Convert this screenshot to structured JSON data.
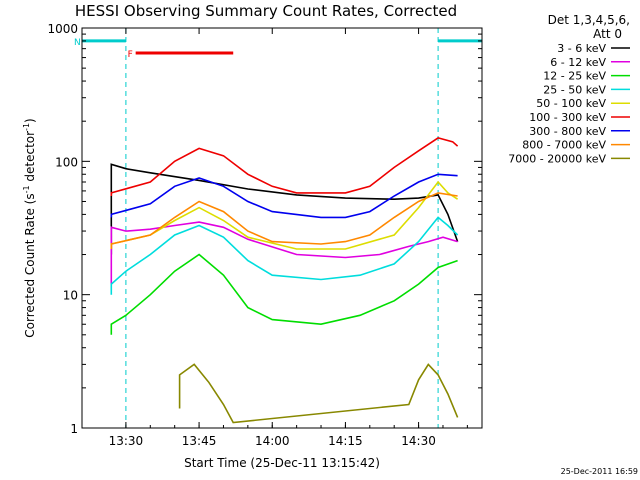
{
  "chart_data": {
    "type": "line",
    "title": "HESSI Observing Summary Count Rates, Corrected",
    "xlabel": "Start Time (25-Dec-11 13:15:42)",
    "ylabel_main": "Corrected Count Rate (s",
    "ylabel_sup1": "-1",
    "ylabel_mid": " detector",
    "ylabel_sup2": "-1",
    "ylabel_end": ")",
    "yscale": "log",
    "ylim": [
      1,
      1000
    ],
    "xlim_minutes": [
      -9,
      73
    ],
    "x_ticks": [
      {
        "t": 0,
        "label": "13:30"
      },
      {
        "t": 15,
        "label": "13:45"
      },
      {
        "t": 30,
        "label": "14:00"
      },
      {
        "t": 45,
        "label": "14:15"
      },
      {
        "t": 60,
        "label": "14:30"
      },
      {
        "t": 75,
        "label": "14:45"
      }
    ],
    "y_ticks": [
      {
        "v": 1,
        "label": "1"
      },
      {
        "v": 10,
        "label": "10"
      },
      {
        "v": 100,
        "label": "100"
      },
      {
        "v": 1000,
        "label": "1000"
      }
    ],
    "legend_header": [
      "Det 1,3,4,5,6,",
      "Att 0"
    ],
    "legend_position": "right",
    "timestamp": "25-Dec-2011 16:59",
    "flags": [
      {
        "label": "F",
        "color": "#ee0000",
        "start": 2,
        "end": 22,
        "value": 650
      },
      {
        "label": "N",
        "color": "#00cccc",
        "start": -16,
        "end": 0,
        "value": 800
      },
      {
        "label": "",
        "color": "#00cccc",
        "start": 64,
        "end": 80,
        "value": 800
      }
    ],
    "night_intervals": [
      {
        "start": -9,
        "end": 0
      },
      {
        "start": 64,
        "end": 80
      }
    ],
    "series": [
      {
        "name": "3 - 6 keV",
        "color": "#000000",
        "points": [
          [
            -3,
            20
          ],
          [
            -3,
            95
          ],
          [
            0,
            88
          ],
          [
            5,
            82
          ],
          [
            15,
            72
          ],
          [
            25,
            62
          ],
          [
            35,
            56
          ],
          [
            45,
            53
          ],
          [
            55,
            52
          ],
          [
            60,
            53
          ],
          [
            64,
            56
          ],
          [
            66,
            40
          ],
          [
            68,
            25
          ]
        ]
      },
      {
        "name": "6 - 12 keV",
        "color": "#e000e0",
        "points": [
          [
            -3,
            12
          ],
          [
            -3,
            32
          ],
          [
            0,
            30
          ],
          [
            5,
            31
          ],
          [
            10,
            33
          ],
          [
            15,
            35
          ],
          [
            20,
            32
          ],
          [
            25,
            26
          ],
          [
            35,
            20
          ],
          [
            45,
            19
          ],
          [
            52,
            20
          ],
          [
            58,
            23
          ],
          [
            62,
            25
          ],
          [
            65,
            27
          ],
          [
            68,
            25
          ]
        ]
      },
      {
        "name": "12 - 25 keV",
        "color": "#00dd00",
        "points": [
          [
            -3,
            5
          ],
          [
            -3,
            6
          ],
          [
            0,
            7
          ],
          [
            5,
            10
          ],
          [
            10,
            15
          ],
          [
            15,
            20
          ],
          [
            20,
            14
          ],
          [
            25,
            8
          ],
          [
            30,
            6.5
          ],
          [
            40,
            6
          ],
          [
            48,
            7
          ],
          [
            55,
            9
          ],
          [
            60,
            12
          ],
          [
            64,
            16
          ],
          [
            68,
            18
          ]
        ]
      },
      {
        "name": "25 - 50 keV",
        "color": "#00dddd",
        "points": [
          [
            -3,
            10
          ],
          [
            -3,
            12
          ],
          [
            0,
            15
          ],
          [
            5,
            20
          ],
          [
            10,
            28
          ],
          [
            15,
            33
          ],
          [
            20,
            27
          ],
          [
            25,
            18
          ],
          [
            30,
            14
          ],
          [
            40,
            13
          ],
          [
            48,
            14
          ],
          [
            55,
            17
          ],
          [
            60,
            25
          ],
          [
            64,
            38
          ],
          [
            66,
            33
          ],
          [
            68,
            28
          ]
        ]
      },
      {
        "name": "50 - 100 keV",
        "color": "#dddd00",
        "points": [
          [
            -3,
            22
          ],
          [
            -3,
            24
          ],
          [
            5,
            28
          ],
          [
            10,
            36
          ],
          [
            15,
            45
          ],
          [
            20,
            36
          ],
          [
            25,
            27
          ],
          [
            35,
            22
          ],
          [
            45,
            22
          ],
          [
            55,
            28
          ],
          [
            60,
            45
          ],
          [
            64,
            70
          ],
          [
            66,
            58
          ],
          [
            68,
            52
          ]
        ]
      },
      {
        "name": "100 - 300 keV",
        "color": "#ee0000",
        "points": [
          [
            -3,
            55
          ],
          [
            -3,
            58
          ],
          [
            5,
            70
          ],
          [
            10,
            100
          ],
          [
            15,
            125
          ],
          [
            20,
            110
          ],
          [
            25,
            80
          ],
          [
            30,
            65
          ],
          [
            35,
            58
          ],
          [
            45,
            58
          ],
          [
            50,
            65
          ],
          [
            55,
            90
          ],
          [
            60,
            120
          ],
          [
            64,
            150
          ],
          [
            67,
            140
          ],
          [
            68,
            130
          ]
        ]
      },
      {
        "name": "300 - 800 keV",
        "color": "#0000ee",
        "points": [
          [
            -3,
            38
          ],
          [
            -3,
            40
          ],
          [
            5,
            48
          ],
          [
            10,
            65
          ],
          [
            15,
            75
          ],
          [
            20,
            65
          ],
          [
            25,
            50
          ],
          [
            30,
            42
          ],
          [
            40,
            38
          ],
          [
            45,
            38
          ],
          [
            50,
            42
          ],
          [
            55,
            55
          ],
          [
            60,
            70
          ],
          [
            64,
            80
          ],
          [
            68,
            78
          ]
        ]
      },
      {
        "name": "800 - 7000 keV",
        "color": "#ff8800",
        "points": [
          [
            -3,
            22
          ],
          [
            -3,
            24
          ],
          [
            5,
            28
          ],
          [
            10,
            38
          ],
          [
            15,
            50
          ],
          [
            20,
            42
          ],
          [
            25,
            30
          ],
          [
            30,
            25
          ],
          [
            40,
            24
          ],
          [
            45,
            25
          ],
          [
            50,
            28
          ],
          [
            55,
            38
          ],
          [
            60,
            50
          ],
          [
            64,
            58
          ],
          [
            68,
            55
          ]
        ]
      },
      {
        "name": "7000 - 20000 keV",
        "color": "#888800",
        "points": [
          [
            11,
            1.4
          ],
          [
            11,
            2.5
          ],
          [
            14,
            3.0
          ],
          [
            17,
            2.2
          ],
          [
            20,
            1.5
          ],
          [
            22,
            1.1
          ],
          [
            58,
            1.5
          ],
          [
            60,
            2.3
          ],
          [
            62,
            3.0
          ],
          [
            64,
            2.5
          ],
          [
            66,
            1.8
          ],
          [
            68,
            1.2
          ]
        ]
      }
    ]
  }
}
